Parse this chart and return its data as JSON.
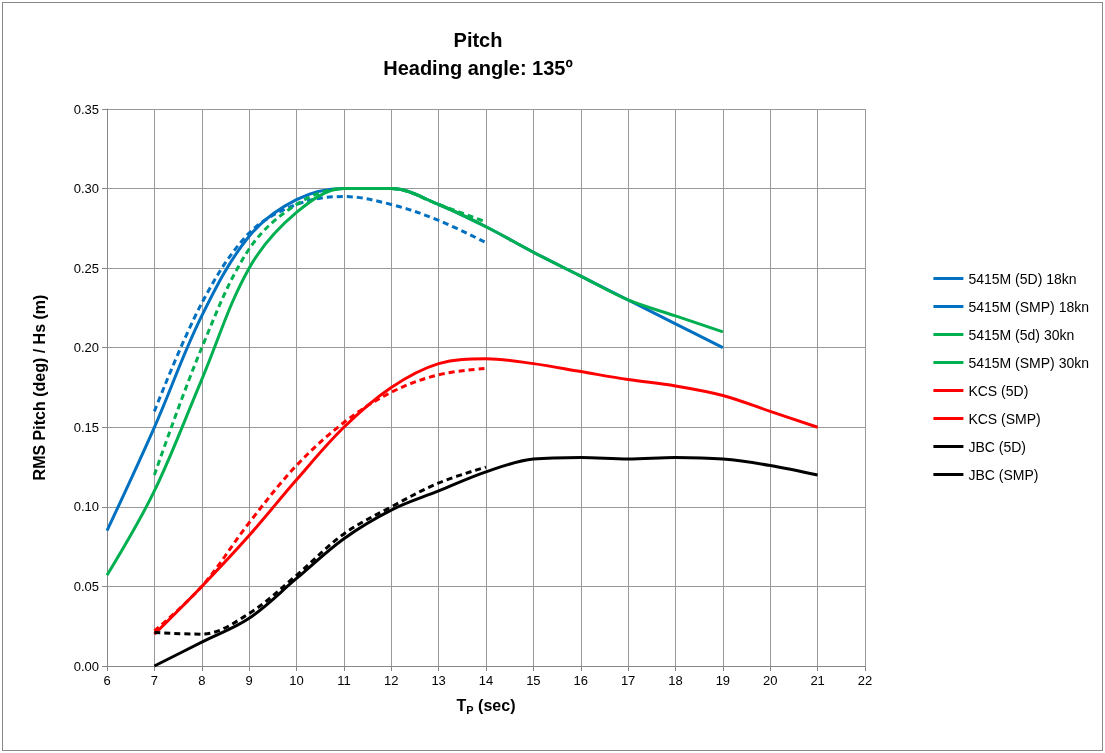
{
  "chart_data": {
    "type": "line",
    "title": "Pitch",
    "subtitle": "Heading angle: 135º",
    "xlabel": "T$_{P}$ (sec)",
    "ylabel": "RMS Pitch (deg) / Hs (m)",
    "xlim": [
      6,
      22
    ],
    "xticks": [
      6,
      7,
      8,
      9,
      10,
      11,
      12,
      13,
      14,
      15,
      16,
      17,
      18,
      19,
      20,
      21,
      22
    ],
    "ylim": [
      0,
      0.35
    ],
    "yticks": [
      {
        "value": 0,
        "label": "0.00"
      },
      {
        "value": 0.05,
        "label": "0.05"
      },
      {
        "value": 0.1,
        "label": "0.10"
      },
      {
        "value": 0.15,
        "label": "0.15"
      },
      {
        "value": 0.2,
        "label": "0.20"
      },
      {
        "value": 0.25,
        "label": "0.25"
      },
      {
        "value": 0.3,
        "label": "0.30"
      },
      {
        "value": 0.35,
        "label": "0.35"
      }
    ],
    "grid": true,
    "legend": "right",
    "marker": "none",
    "series": [
      {
        "name": "5415M (5D) 18kn",
        "color": "#0070c0",
        "line_style": "dashed",
        "x": [
          7,
          8,
          9,
          10,
          11,
          12,
          13,
          14
        ],
        "values": [
          0.16,
          0.228,
          0.272,
          0.29,
          0.295,
          0.29,
          0.28,
          0.266
        ]
      },
      {
        "name": "5415M (SMP) 18kn",
        "color": "#0070c0",
        "line_style": "solid",
        "x": [
          6,
          7,
          8,
          9,
          10,
          11,
          12,
          13,
          14,
          15,
          16,
          17,
          18,
          19
        ],
        "values": [
          0.085,
          0.15,
          0.22,
          0.27,
          0.293,
          0.3,
          0.3,
          0.29,
          0.276,
          0.26,
          0.245,
          0.23,
          0.215,
          0.2
        ]
      },
      {
        "name": "5415M (5d) 30kn",
        "color": "#00b050",
        "line_style": "dashed",
        "x": [
          7,
          8,
          9,
          10,
          11,
          12,
          13,
          14
        ],
        "values": [
          0.12,
          0.2,
          0.262,
          0.29,
          0.3,
          0.3,
          0.29,
          0.279
        ]
      },
      {
        "name": "5415M (SMP) 30kn",
        "color": "#00b050",
        "line_style": "solid",
        "x": [
          6,
          7,
          8,
          9,
          10,
          11,
          12,
          13,
          14,
          15,
          16,
          17,
          18,
          19
        ],
        "values": [
          0.057,
          0.11,
          0.18,
          0.25,
          0.285,
          0.3,
          0.3,
          0.29,
          0.276,
          0.26,
          0.245,
          0.23,
          0.22,
          0.21
        ]
      },
      {
        "name": "KCS (5D)",
        "color": "#ff0000",
        "line_style": "dashed",
        "x": [
          7,
          8,
          9,
          10,
          11,
          12,
          13,
          14
        ],
        "values": [
          0.022,
          0.05,
          0.09,
          0.126,
          0.153,
          0.172,
          0.183,
          0.187
        ]
      },
      {
        "name": "KCS (SMP)",
        "color": "#ff0000",
        "line_style": "solid",
        "x": [
          7,
          8,
          9,
          10,
          11,
          12,
          13,
          14,
          15,
          16,
          17,
          18,
          19,
          20,
          21
        ],
        "values": [
          0.02,
          0.05,
          0.082,
          0.117,
          0.15,
          0.175,
          0.19,
          0.193,
          0.19,
          0.185,
          0.18,
          0.176,
          0.17,
          0.16,
          0.15
        ]
      },
      {
        "name": "JBC (5D)",
        "color": "#000000",
        "line_style": "dashed",
        "x": [
          7,
          8,
          9,
          10,
          11,
          12,
          13,
          14
        ],
        "values": [
          0.021,
          0.02,
          0.033,
          0.057,
          0.083,
          0.1,
          0.115,
          0.125
        ]
      },
      {
        "name": "JBC (SMP)",
        "color": "#000000",
        "line_style": "solid",
        "x": [
          7,
          8,
          9,
          10,
          11,
          12,
          13,
          14,
          15,
          16,
          17,
          18,
          19,
          20,
          21
        ],
        "values": [
          0,
          0.015,
          0.03,
          0.055,
          0.08,
          0.098,
          0.11,
          0.122,
          0.13,
          0.131,
          0.13,
          0.131,
          0.13,
          0.126,
          0.12
        ]
      }
    ]
  }
}
